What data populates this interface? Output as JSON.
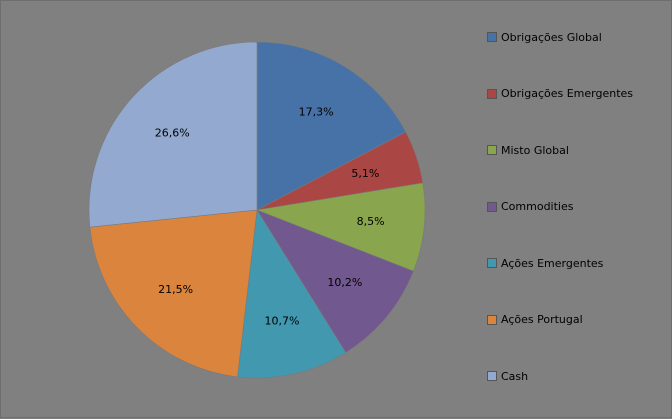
{
  "chart_data": {
    "type": "pie",
    "categories": [
      "Obrigações Global",
      "Obrigações Emergentes",
      "Misto Global",
      "Commodities",
      "Ações Emergentes",
      "Ações Portugal",
      "Cash"
    ],
    "values": [
      17.3,
      5.1,
      8.5,
      10.2,
      10.7,
      21.5,
      26.6
    ],
    "labels": [
      "17,3%",
      "5,1%",
      "8,5%",
      "10,2%",
      "10,7%",
      "21,5%",
      "26,6%"
    ],
    "colors": [
      "#4672A8",
      "#AA4643",
      "#89A54E",
      "#71588F",
      "#4198AF",
      "#DB843D",
      "#93A9CF"
    ],
    "start": "12 o'clock",
    "direction": "clockwise",
    "legend_position": "right"
  }
}
